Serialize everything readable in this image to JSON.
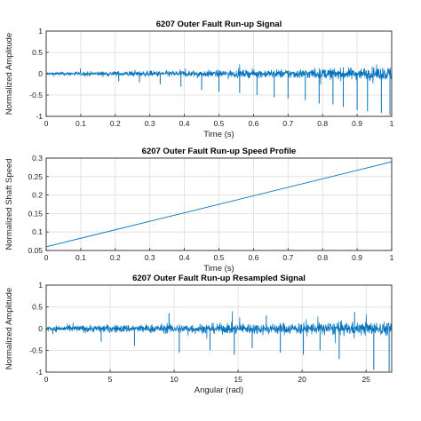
{
  "chart_data": [
    {
      "type": "line",
      "title": "6207 Outer Fault Run-up Signal",
      "xlabel": "Time (s)",
      "ylabel": "Normalized Amplitude",
      "xlim": [
        0,
        1
      ],
      "ylim": [
        -1,
        1
      ],
      "xticks": [
        "0",
        "0.1",
        "0.2",
        "0.3",
        "0.4",
        "0.5",
        "0.6",
        "0.7",
        "0.8",
        "0.9",
        "1"
      ],
      "yticks": [
        "-1",
        "-0.5",
        "0",
        "0.5",
        "1"
      ],
      "grid": true,
      "color": "#0072BD",
      "series": [
        {
          "x": [
            0,
            0.1,
            0.2,
            0.3,
            0.4,
            0.5,
            0.6,
            0.7,
            0.8,
            0.9,
            1.0
          ],
          "envelope": [
            0.05,
            0.06,
            0.07,
            0.08,
            0.09,
            0.1,
            0.11,
            0.13,
            0.15,
            0.17,
            0.2
          ],
          "impulses": [
            {
              "x": 0.21,
              "y": -0.18
            },
            {
              "x": 0.27,
              "y": -0.2
            },
            {
              "x": 0.33,
              "y": -0.25
            },
            {
              "x": 0.39,
              "y": -0.3
            },
            {
              "x": 0.45,
              "y": -0.38
            },
            {
              "x": 0.5,
              "y": -0.42
            },
            {
              "x": 0.56,
              "y": -0.45
            },
            {
              "x": 0.61,
              "y": -0.5
            },
            {
              "x": 0.66,
              "y": -0.55
            },
            {
              "x": 0.7,
              "y": -0.58
            },
            {
              "x": 0.75,
              "y": -0.62
            },
            {
              "x": 0.79,
              "y": -0.7
            },
            {
              "x": 0.83,
              "y": -0.72
            },
            {
              "x": 0.86,
              "y": -0.78
            },
            {
              "x": 0.9,
              "y": -0.85
            },
            {
              "x": 0.93,
              "y": -0.88
            },
            {
              "x": 0.97,
              "y": -0.92
            },
            {
              "x": 0.995,
              "y": -0.97
            }
          ]
        }
      ]
    },
    {
      "type": "line",
      "title": "6207 Outer Fault Run-up Speed Profile",
      "xlabel": "Time (s)",
      "ylabel": "Normalized Shaft Speed",
      "xlim": [
        0,
        1
      ],
      "ylim": [
        0.05,
        0.3
      ],
      "xticks": [
        "0",
        "0.1",
        "0.2",
        "0.3",
        "0.4",
        "0.5",
        "0.6",
        "0.7",
        "0.8",
        "0.9",
        "1"
      ],
      "yticks": [
        "0.05",
        "0.1",
        "0.15",
        "0.2",
        "0.25",
        "0.3"
      ],
      "grid": true,
      "color": "#0072BD",
      "series": [
        {
          "x": [
            0,
            1
          ],
          "y": [
            0.06,
            0.29
          ]
        }
      ]
    },
    {
      "type": "line",
      "title": "6207 Outer Fault Run-up Resampled Signal",
      "xlabel": "Angular (rad)",
      "ylabel": "Normalized Amplitude",
      "xlim": [
        0,
        27
      ],
      "ylim": [
        -1,
        1
      ],
      "xticks": [
        "0",
        "5",
        "10",
        "15",
        "20",
        "25"
      ],
      "yticks": [
        "-1",
        "-0.5",
        "0",
        "0.5",
        "1"
      ],
      "grid": true,
      "color": "#0072BD",
      "series": [
        {
          "x": [
            0,
            2.7,
            5.4,
            8.1,
            10.8,
            13.5,
            16.2,
            18.9,
            21.6,
            24.3,
            27
          ],
          "envelope": [
            0.08,
            0.1,
            0.11,
            0.12,
            0.13,
            0.14,
            0.15,
            0.16,
            0.17,
            0.18,
            0.19
          ],
          "impulses": [
            {
              "x": 4.3,
              "y": -0.3
            },
            {
              "x": 6.9,
              "y": -0.4
            },
            {
              "x": 10.4,
              "y": -0.55
            },
            {
              "x": 12.8,
              "y": -0.5
            },
            {
              "x": 14.7,
              "y": -0.6
            },
            {
              "x": 16.1,
              "y": -0.45
            },
            {
              "x": 18.3,
              "y": -0.55
            },
            {
              "x": 20.1,
              "y": -0.6
            },
            {
              "x": 21.4,
              "y": -0.5
            },
            {
              "x": 22.9,
              "y": -0.7
            },
            {
              "x": 25.6,
              "y": -0.95
            },
            {
              "x": 26.8,
              "y": -0.98
            },
            {
              "x": 9.6,
              "y": 0.35
            },
            {
              "x": 17.2,
              "y": 0.3
            },
            {
              "x": 24.1,
              "y": 0.38
            }
          ]
        }
      ]
    }
  ]
}
